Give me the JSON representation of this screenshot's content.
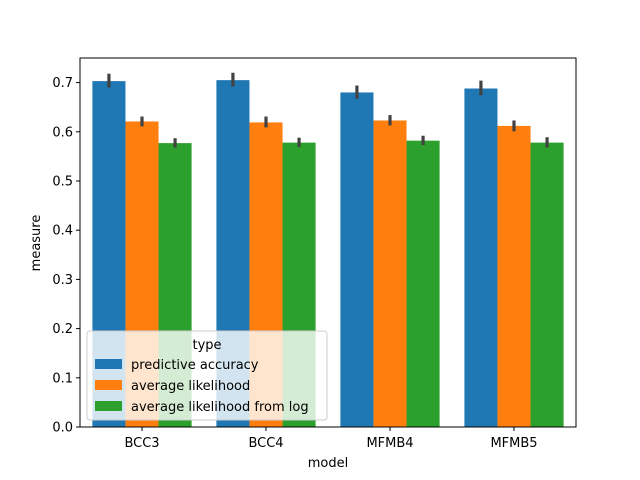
{
  "chart_data": {
    "type": "bar",
    "xlabel": "model",
    "ylabel": "measure",
    "categories": [
      "BCC3",
      "BCC4",
      "MFMB4",
      "MFMB5"
    ],
    "ylim": [
      0,
      0.75
    ],
    "yticks": [
      0.0,
      0.1,
      0.2,
      0.3,
      0.4,
      0.5,
      0.6,
      0.7
    ],
    "ytick_labels": [
      "0.0",
      "0.1",
      "0.2",
      "0.3",
      "0.4",
      "0.5",
      "0.6",
      "0.7"
    ],
    "grid": false,
    "legend": {
      "title": "type",
      "placement": "lower-left"
    },
    "series": [
      {
        "name": "predictive accuracy",
        "color": "#1f77b4",
        "values": [
          0.703,
          0.705,
          0.68,
          0.688
        ],
        "err_low": [
          0.69,
          0.692,
          0.667,
          0.674
        ],
        "err_high": [
          0.718,
          0.72,
          0.694,
          0.704
        ]
      },
      {
        "name": "average likelihood",
        "color": "#ff7f0e",
        "values": [
          0.621,
          0.619,
          0.623,
          0.612
        ],
        "err_low": [
          0.611,
          0.609,
          0.613,
          0.601
        ],
        "err_high": [
          0.631,
          0.631,
          0.634,
          0.623
        ]
      },
      {
        "name": "average likelihood from log",
        "color": "#2ca02c",
        "values": [
          0.577,
          0.578,
          0.582,
          0.578
        ],
        "err_low": [
          0.568,
          0.569,
          0.573,
          0.568
        ],
        "err_high": [
          0.587,
          0.588,
          0.592,
          0.589
        ]
      }
    ]
  }
}
